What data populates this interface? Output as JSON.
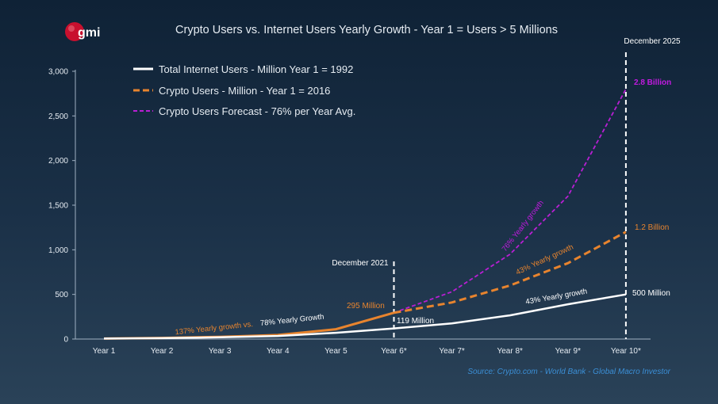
{
  "logo": {
    "text": "gmi",
    "color": "#c8102e"
  },
  "chart_data": {
    "type": "line",
    "title": "Crypto Users vs. Internet Users Yearly Growth - Year 1 = Users > 5 Millions",
    "categories": [
      "Year 1",
      "Year 2",
      "Year 3",
      "Year 4",
      "Year 5",
      "Year 6*",
      "Year 7*",
      "Year 8*",
      "Year 9*",
      "Year 10*"
    ],
    "ylim": [
      0,
      3000
    ],
    "yticks": [
      0,
      500,
      1000,
      1500,
      2000,
      2500,
      3000
    ],
    "ytick_labels": [
      "0",
      "500",
      "1,000",
      "1,500",
      "2,000",
      "2,500",
      "3,000"
    ],
    "grid": false,
    "legend_position": "top-left",
    "series": [
      {
        "name": "Total Internet Users - Million Year 1 = 1992",
        "style": "solid",
        "color": "#ffffff",
        "values": [
          5,
          10,
          20,
          35,
          70,
          119,
          175,
          265,
          390,
          500
        ]
      },
      {
        "name": "Crypto Users - Million - Year 1 = 2016",
        "style": "solid-then-dashed",
        "color": "#e8842e",
        "values": [
          5,
          12,
          25,
          45,
          110,
          295,
          410,
          600,
          850,
          1200
        ]
      },
      {
        "name": "Crypto Users Forecast - 76% per Year Avg.",
        "style": "dashed",
        "color": "#b91fd4",
        "values": [
          null,
          null,
          null,
          null,
          null,
          295,
          530,
          950,
          1600,
          2800
        ]
      }
    ],
    "annotations": [
      {
        "text": "December 2021",
        "at": "Year 6*",
        "kind": "vline-label"
      },
      {
        "text": "December 2025",
        "at": "Year 10*",
        "kind": "vline-label"
      },
      {
        "text": "2.8 Billion",
        "color": "#c21ae0"
      },
      {
        "text": "1.2 Billion",
        "color": "#e8842e"
      },
      {
        "text": "500 Million",
        "color": "#ffffff"
      },
      {
        "text": "295 Million",
        "color": "#e8842e"
      },
      {
        "text": "119 Million",
        "color": "#ffffff"
      },
      {
        "text": "137% Yearly growth vs.",
        "color": "#e8842e"
      },
      {
        "text": "78% Yearly Growth",
        "color": "#ffffff"
      },
      {
        "text": "76% Yearly growth",
        "color": "#c21ae0"
      },
      {
        "text": "43% Yearly growth",
        "color": "#e8842e"
      },
      {
        "text": "43% Yearly growth ",
        "color": "#ffffff"
      }
    ],
    "source": "Source: Crypto.com - World Bank - Global Macro Investor"
  }
}
